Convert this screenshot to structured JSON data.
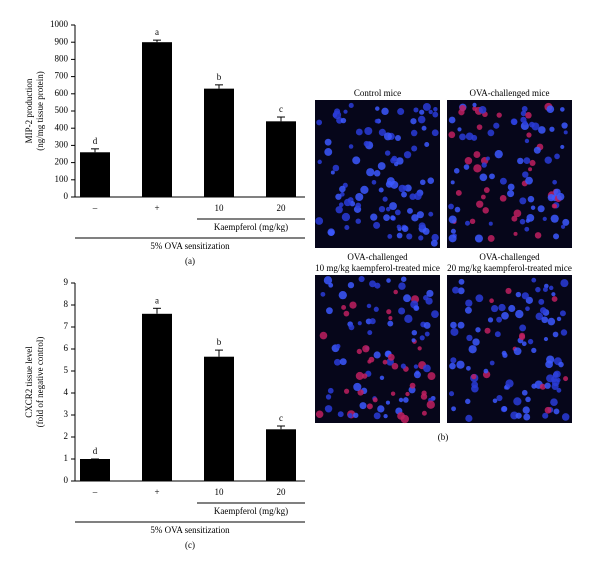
{
  "chart_data": [
    {
      "type": "bar",
      "ylabel": [
        "MIP-2 production",
        "(ng/mg tissue protein)"
      ],
      "categories": [
        "–",
        "+",
        "10",
        "20"
      ],
      "values": [
        260,
        900,
        630,
        440
      ],
      "errors": [
        20,
        12,
        22,
        25
      ],
      "annotations": [
        "d",
        "a",
        "b",
        "c"
      ],
      "group_label": "Kaempferol (mg/kg)",
      "baseline_label": "5% OVA sensitization",
      "panel_label": "(a)",
      "color": "#000000",
      "ylim": [
        0,
        1000
      ],
      "yticks": [
        0,
        100,
        200,
        300,
        400,
        500,
        600,
        700,
        800,
        900,
        1000
      ]
    },
    {
      "type": "bar",
      "ylabel": [
        "CXCR2 tissue level",
        "(fold of negative control)"
      ],
      "categories": [
        "–",
        "+",
        "10",
        "20"
      ],
      "values": [
        1.0,
        7.6,
        5.65,
        2.35
      ],
      "errors": [
        0,
        0.25,
        0.3,
        0.15
      ],
      "annotations": [
        "d",
        "a",
        "b",
        "c"
      ],
      "group_label": "Kaempferol (mg/kg)",
      "baseline_label": "5% OVA sensitization",
      "panel_label": "(c)",
      "color": "#000000",
      "ylim": [
        0,
        9
      ],
      "yticks": [
        0,
        1,
        2,
        3,
        4,
        5,
        6,
        7,
        8,
        9
      ]
    }
  ],
  "micrographs": {
    "titles": [
      [
        "Control mice"
      ],
      [
        "OVA-challenged mice"
      ],
      [
        "OVA-challenged",
        "10 mg/kg kaempferol-treated mice"
      ],
      [
        "OVA-challenged",
        "20 mg/kg kaempferol-treated mice"
      ]
    ],
    "panel_label": "(b)"
  }
}
